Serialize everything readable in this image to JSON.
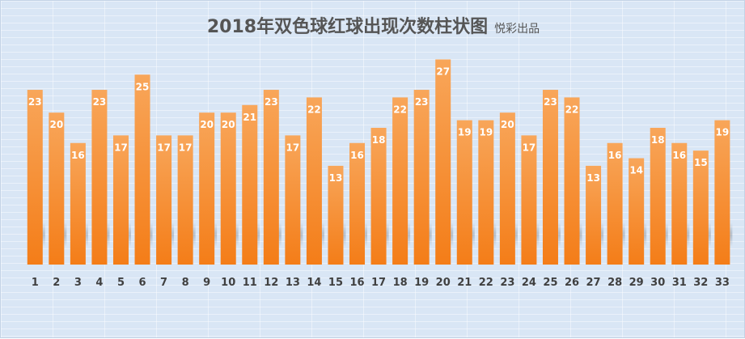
{
  "chart_data": {
    "type": "bar",
    "title": "2018年双色球红球出现次数柱状图",
    "subtitle": "悦彩出品",
    "xlabel": "",
    "ylabel": "",
    "ylim": [
      0,
      30
    ],
    "grid": true,
    "legend": "none",
    "categories": [
      "1",
      "2",
      "3",
      "4",
      "5",
      "6",
      "7",
      "8",
      "9",
      "10",
      "11",
      "12",
      "13",
      "14",
      "15",
      "16",
      "17",
      "18",
      "19",
      "20",
      "21",
      "22",
      "23",
      "24",
      "25",
      "26",
      "27",
      "28",
      "29",
      "30",
      "31",
      "32",
      "33"
    ],
    "values": [
      23,
      20,
      16,
      23,
      17,
      25,
      17,
      17,
      20,
      20,
      21,
      23,
      17,
      22,
      13,
      16,
      18,
      22,
      23,
      27,
      19,
      19,
      20,
      17,
      23,
      22,
      13,
      16,
      14,
      18,
      16,
      15,
      19
    ],
    "colors": {
      "bar_top": "#f8a65a",
      "bar_bottom": "#f47d18",
      "background": "#d9e6f5",
      "label": "#ffffff"
    }
  }
}
